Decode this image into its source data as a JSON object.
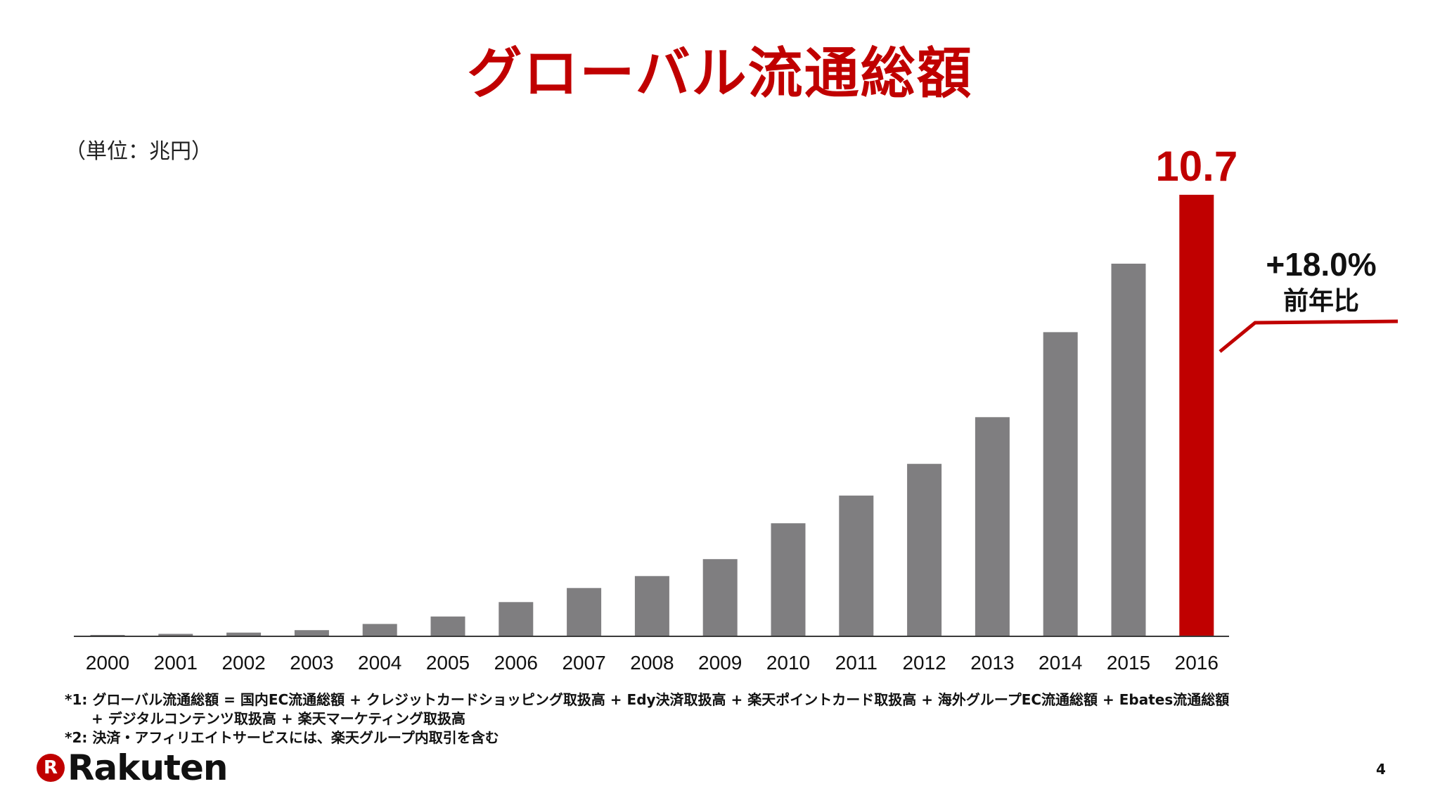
{
  "slide": {
    "title": "グローバル流通総額",
    "unit": "（単位：兆円）",
    "page_number": "4"
  },
  "chart_data": {
    "type": "bar",
    "title": "グローバル流通総額",
    "xlabel": "",
    "ylabel": "（単位：兆円）",
    "ylim": [
      0,
      11.5
    ],
    "categories": [
      "2000",
      "2001",
      "2002",
      "2003",
      "2004",
      "2005",
      "2006",
      "2007",
      "2008",
      "2009",
      "2010",
      "2011",
      "2012",
      "2013",
      "2014",
      "2015",
      "2016"
    ],
    "values": [
      0.03,
      0.06,
      0.09,
      0.15,
      0.3,
      0.48,
      0.83,
      1.17,
      1.46,
      1.87,
      2.74,
      3.41,
      4.18,
      5.31,
      7.37,
      9.03,
      10.7
    ],
    "highlight_index": 16,
    "highlight_label": "10.7",
    "growth_label": "+18.0%",
    "growth_caption": "前年比",
    "grid": false
  },
  "footnotes": [
    "*1: グローバル流通総額 = 国内EC流通総額 + クレジットカードショッピング取扱高 + Edy決済取扱高 + 楽天ポイントカード取扱高 + 海外グループEC流通総額 + Ebates流通総額",
    "+ デジタルコンテンツ取扱高 + 楽天マーケティング取扱高",
    "*2: 決済・アフィリエイトサービスには、楽天グループ内取引を含む"
  ],
  "brand": {
    "mark": "R",
    "name": "Rakuten"
  },
  "colors": {
    "accent": "#c00000",
    "bar": "#7f7e80",
    "axis": "#3a3a3a",
    "text": "#111111"
  }
}
